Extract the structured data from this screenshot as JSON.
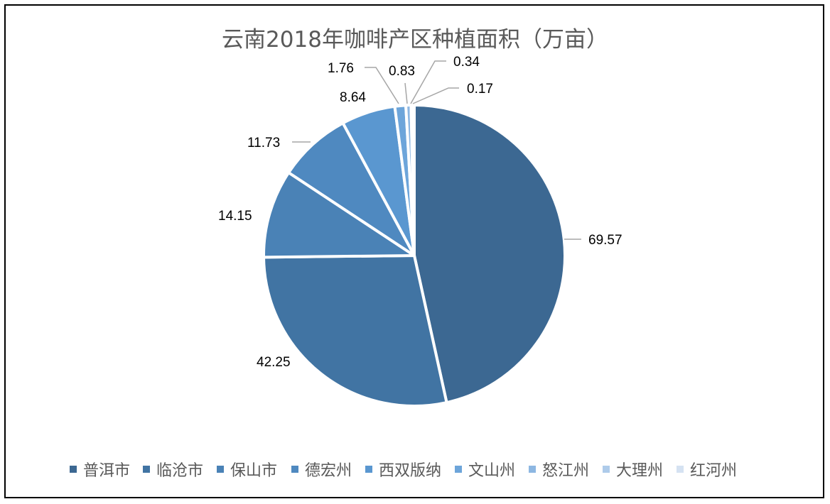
{
  "chart_data": {
    "type": "pie",
    "title": "云南2018年咖啡产区种植面积（万亩）",
    "categories": [
      "普洱市",
      "临沧市",
      "保山市",
      "德宏州",
      "西双版纳",
      "文山州",
      "怒江州",
      "大理州",
      "红河州"
    ],
    "values": [
      69.57,
      42.25,
      14.15,
      11.73,
      8.64,
      1.76,
      0.83,
      0.34,
      0.17
    ],
    "data_labels": [
      "69.57",
      "42.25",
      "14.15",
      "11.73",
      "8.64",
      "1.76",
      "0.83",
      "0.34",
      "0.17"
    ],
    "colors": [
      "#3c6892",
      "#4174a3",
      "#4a82b6",
      "#4f89c0",
      "#5a97d0",
      "#6da5da",
      "#8db7e2",
      "#aecbea",
      "#d5e2f2"
    ],
    "legend": "bottom",
    "start": "12 o'clock",
    "direction": "clockwise"
  }
}
